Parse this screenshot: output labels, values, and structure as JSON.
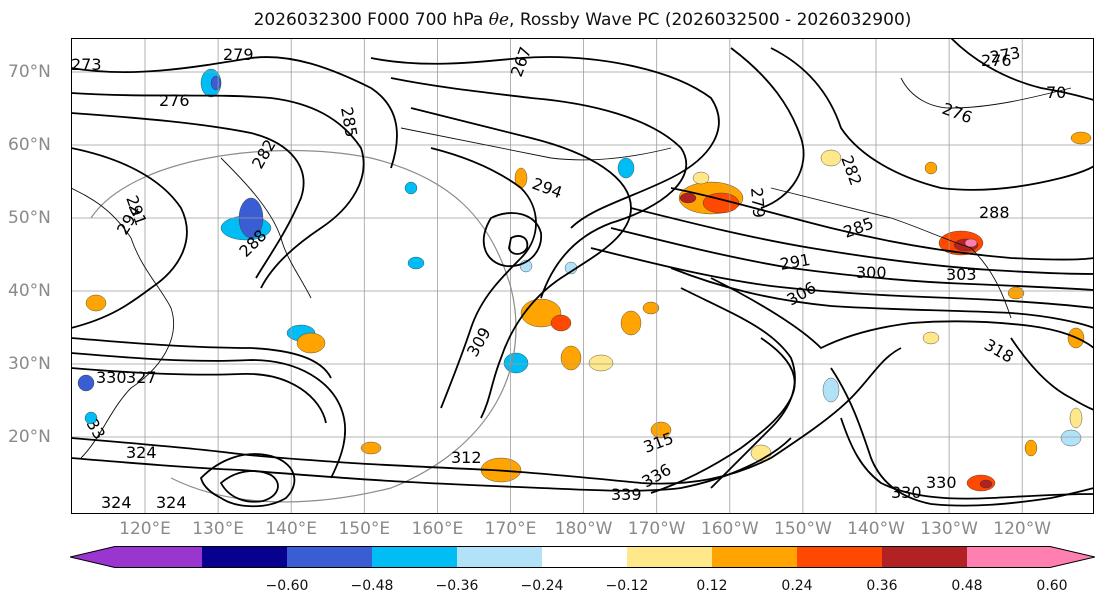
{
  "title_main": "2026032300 F000 700 hPa ",
  "title_symbol": "θe",
  "title_rest": ", Rossby Wave PC (2026032500 - 2026032900)",
  "lat_labels": [
    "70°N",
    "60°N",
    "50°N",
    "40°N",
    "30°N",
    "20°N"
  ],
  "lon_labels": [
    "120°E",
    "130°E",
    "140°E",
    "150°E",
    "160°E",
    "170°E",
    "180°W",
    "170°W",
    "160°W",
    "150°W",
    "140°W",
    "130°W",
    "120°W"
  ],
  "colorbar": {
    "ticks": [
      "−0.60",
      "−0.48",
      "−0.36",
      "−0.24",
      "−0.12",
      "0.12",
      "0.24",
      "0.36",
      "0.48",
      "0.60"
    ],
    "colors": [
      "#9a35d0",
      "#08008e",
      "#3a5dd3",
      "#00bdf5",
      "#b2e2f8",
      "#ffffff",
      "#ffe88a",
      "#ffa400",
      "#ff4800",
      "#b22222",
      "#ff80b0"
    ]
  },
  "contour_labels": [
    {
      "text": "273"
    },
    {
      "text": "279"
    },
    {
      "text": "276"
    },
    {
      "text": "285"
    },
    {
      "text": "267"
    },
    {
      "text": "282"
    },
    {
      "text": "291"
    },
    {
      "text": "294"
    },
    {
      "text": "288"
    },
    {
      "text": "294"
    },
    {
      "text": "279"
    },
    {
      "text": "282"
    },
    {
      "text": "276"
    },
    {
      "text": "273"
    },
    {
      "text": "276"
    },
    {
      "text": "70"
    },
    {
      "text": "285"
    },
    {
      "text": "291"
    },
    {
      "text": "300"
    },
    {
      "text": "303"
    },
    {
      "text": "288"
    },
    {
      "text": "306"
    },
    {
      "text": "318"
    },
    {
      "text": "309"
    },
    {
      "text": "330"
    },
    {
      "text": "327"
    },
    {
      "text": "324"
    },
    {
      "text": "315"
    },
    {
      "text": "330"
    },
    {
      "text": "339"
    },
    {
      "text": "336"
    },
    {
      "text": "330"
    },
    {
      "text": "312"
    },
    {
      "text": "324"
    },
    {
      "text": "33"
    },
    {
      "text": "324"
    }
  ]
}
